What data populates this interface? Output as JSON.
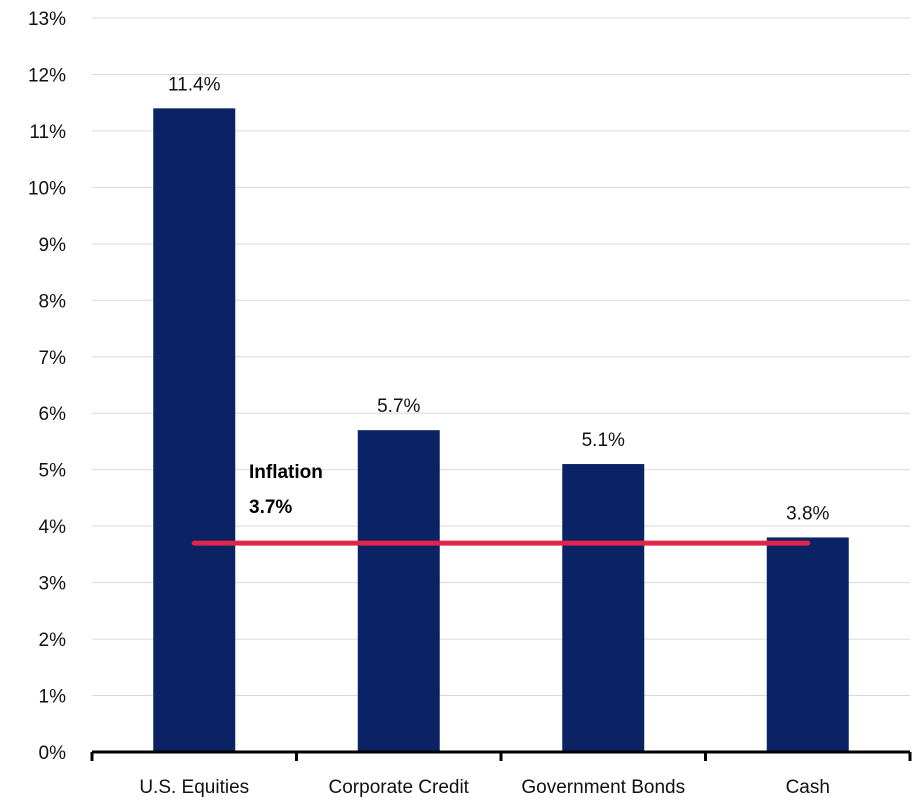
{
  "chart_data": {
    "type": "bar",
    "categories": [
      "U.S. Equities",
      "Corporate Credit",
      "Government Bonds",
      "Cash"
    ],
    "values": [
      11.4,
      5.7,
      5.1,
      3.8
    ],
    "data_labels": [
      "11.4%",
      "5.7%",
      "5.1%",
      "3.8%"
    ],
    "title": "",
    "xlabel": "",
    "ylabel": "",
    "ylim": [
      0,
      13
    ],
    "y_ticks": [
      0,
      1,
      2,
      3,
      4,
      5,
      6,
      7,
      8,
      9,
      10,
      11,
      12,
      13
    ],
    "y_tick_labels": [
      "0%",
      "1%",
      "2%",
      "3%",
      "4%",
      "5%",
      "6%",
      "7%",
      "8%",
      "9%",
      "10%",
      "11%",
      "12%",
      "13%"
    ],
    "grid": true,
    "reference_line": {
      "value": 3.7,
      "label_line1": "Inflation",
      "label_line2": "3.7%",
      "color": "#E0244A"
    },
    "colors": {
      "bar": "#0B2265",
      "grid": "#D9D9D9",
      "axis": "#000000"
    }
  }
}
